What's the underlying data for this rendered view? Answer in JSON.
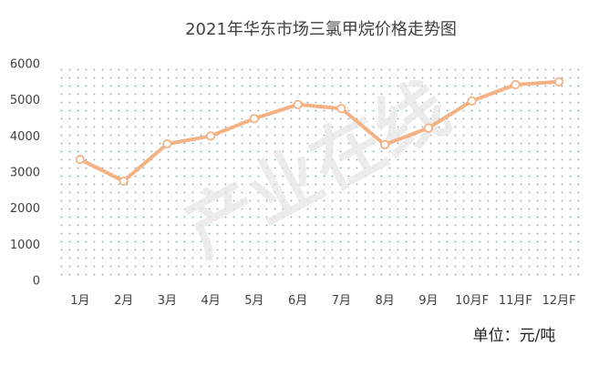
{
  "chart_data": {
    "type": "line",
    "title": "2021年华东市场三氯甲烷价格走势图",
    "unit_label": "单位：元/吨",
    "watermark": "产业在线",
    "categories": [
      "1月",
      "2月",
      "3月",
      "4月",
      "5月",
      "6月",
      "7月",
      "8月",
      "9月",
      "10月F",
      "11月F",
      "12月F"
    ],
    "series": [
      {
        "name": "",
        "values": [
          3350,
          2750,
          3780,
          4000,
          4480,
          4870,
          4760,
          3760,
          4220,
          4970,
          5420,
          5500
        ]
      }
    ],
    "ylim": [
      0,
      6000
    ],
    "yticks": [
      "0",
      "1000",
      "2000",
      "3000",
      "4000",
      "5000",
      "6000"
    ],
    "xlabel": "",
    "ylabel": "",
    "grid": false,
    "legend": "none",
    "colors": {
      "line": "#f4b183",
      "marker_fill": "#ffffff",
      "plot_dots": "#7fa7b5",
      "text": "#404040"
    }
  }
}
